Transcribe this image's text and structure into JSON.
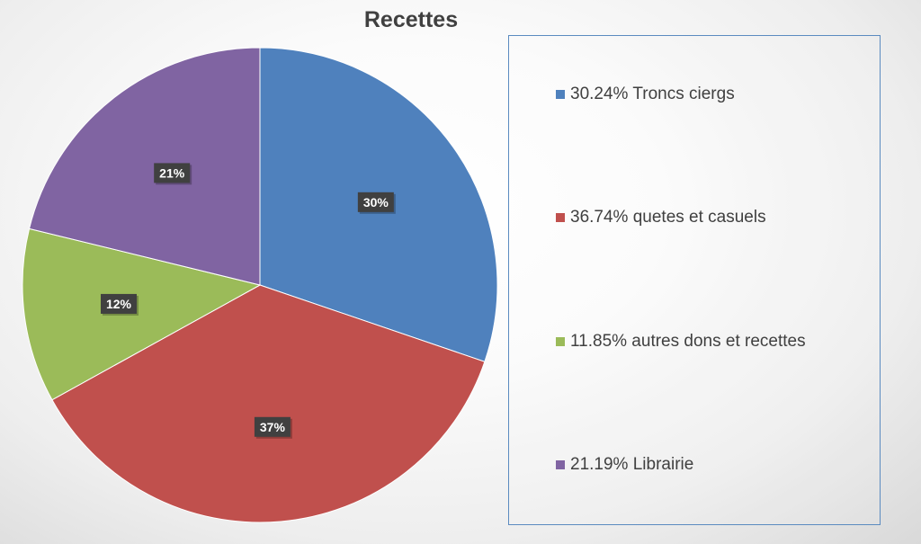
{
  "chart_data": {
    "type": "pie",
    "title": "Recettes",
    "start_angle_deg": 0,
    "direction": "clockwise",
    "slices": [
      {
        "label": "Troncs ciergs",
        "value": 30.24,
        "data_label": "30%",
        "legend_text": "30.24% Troncs ciergs",
        "color": "#4f81bd"
      },
      {
        "label": "quetes et casuels",
        "value": 36.74,
        "data_label": "37%",
        "legend_text": "36.74% quetes et casuels",
        "color": "#c0504d"
      },
      {
        "label": "autres dons et recettes",
        "value": 11.85,
        "data_label": "12%",
        "legend_text": "11.85% autres dons et recettes",
        "color": "#9bbb59"
      },
      {
        "label": "Librairie",
        "value": 21.19,
        "data_label": "21%",
        "legend_text": "21.19% Librairie",
        "color": "#8064a2"
      }
    ],
    "legend_position": "right",
    "data_label_style": {
      "background": "#404040",
      "text_color": "#ffffff"
    }
  }
}
